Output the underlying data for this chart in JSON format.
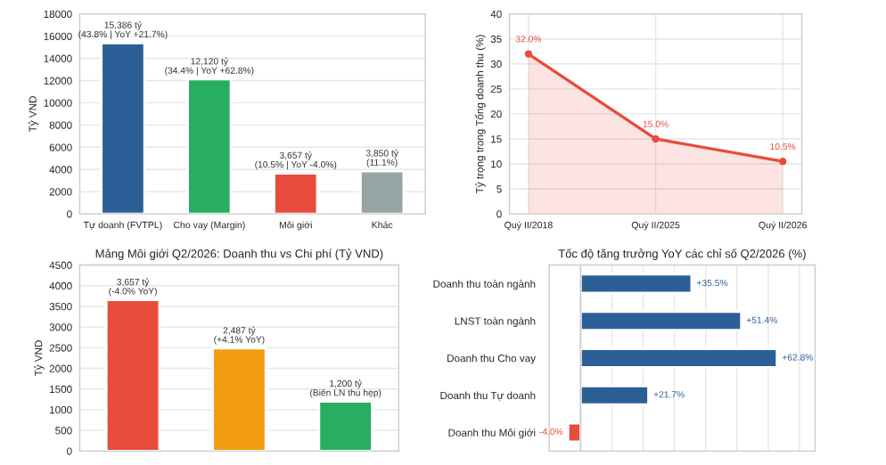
{
  "chart_data": [
    {
      "type": "bar",
      "ylabel": "Tỷ VND",
      "categories": [
        "Tự doanh (FVTPL)",
        "Cho vay (Margin)",
        "Môi giới",
        "Khác"
      ],
      "values": [
        15386,
        12120,
        3657,
        3850
      ],
      "colors": [
        "#2c5f96",
        "#27ae60",
        "#e74c3c",
        "#95a5a6"
      ],
      "value_labels": [
        "15,386 tỷ\n(43.8% | YoY +21.7%)",
        "12,120 tỷ\n(34.4% | YoY +62.8%)",
        "3,657 tỷ\n(10.5% | YoY -4.0%)",
        "3,850 tỷ\n(11.1%)"
      ],
      "ylim": [
        0,
        18000
      ],
      "yticks": [
        0,
        2000,
        4000,
        6000,
        8000,
        10000,
        12000,
        14000,
        16000,
        18000
      ],
      "grid": "y"
    },
    {
      "type": "area",
      "ylabel": "Tỷ trọng trong Tổng doanh thu (%)",
      "categories": [
        "Quý II/2018",
        "Quý II/2025",
        "Quý II/2026"
      ],
      "series": [
        {
          "color": "#e74c3c",
          "values": [
            32.0,
            15.0,
            10.5
          ]
        }
      ],
      "value_labels": [
        "32.0%",
        "15.0%",
        "10.5%"
      ],
      "marker": "circle",
      "ylim": [
        0,
        40
      ],
      "yticks": [
        0,
        5,
        10,
        15,
        20,
        25,
        30,
        35,
        40
      ],
      "grid": true
    },
    {
      "type": "bar",
      "title": "Mảng Môi giới Q2/2026: Doanh thu vs Chi phí (Tỷ VND)",
      "ylabel": "Tỷ VND",
      "categories": [
        null,
        null,
        null
      ],
      "values": [
        3657,
        2487,
        1200
      ],
      "colors": [
        "#e74c3c",
        "#f39c12",
        "#27ae60"
      ],
      "value_labels": [
        "3,657 tỷ\n(-4.0% YoY)",
        "2,487 tỷ\n(+4.1% YoY)",
        "1,200 tỷ\n(Biên LN thu hẹp)"
      ],
      "ylim": [
        0,
        4500
      ],
      "yticks": [
        0,
        500,
        1000,
        1500,
        2000,
        2500,
        3000,
        3500,
        4000,
        4500
      ],
      "grid": "y"
    },
    {
      "type": "bar",
      "orientation": "horizontal",
      "title": "Tốc độ tăng trưởng YoY các chỉ số Q2/2026 (%)",
      "categories": [
        "Doanh thu toàn ngành",
        "LNST toàn ngành",
        "Doanh thu Cho vay",
        "Doanh thu Tự doanh",
        "Doanh thu Môi giới"
      ],
      "values": [
        35.5,
        51.4,
        62.8,
        21.7,
        -4.0
      ],
      "colors": [
        "#2c5f96",
        "#2c5f96",
        "#2c5f96",
        "#2c5f96",
        "#e74c3c"
      ],
      "value_labels": [
        "+35.5%",
        "+51.4%",
        "+62.8%",
        "+21.7%",
        "-4.0%"
      ],
      "xlim": [
        -10,
        75
      ],
      "xticks": [
        {
          "value": 0,
          "label": null
        },
        {
          "value": 10,
          "label": null
        },
        {
          "value": 20,
          "label": null
        },
        {
          "value": 30,
          "label": null
        },
        {
          "value": 40,
          "label": null
        },
        {
          "value": 50,
          "label": null
        },
        {
          "value": 60,
          "label": null
        },
        {
          "value": 70,
          "label": null
        }
      ],
      "tick_labels": "y",
      "grid": "x"
    }
  ]
}
